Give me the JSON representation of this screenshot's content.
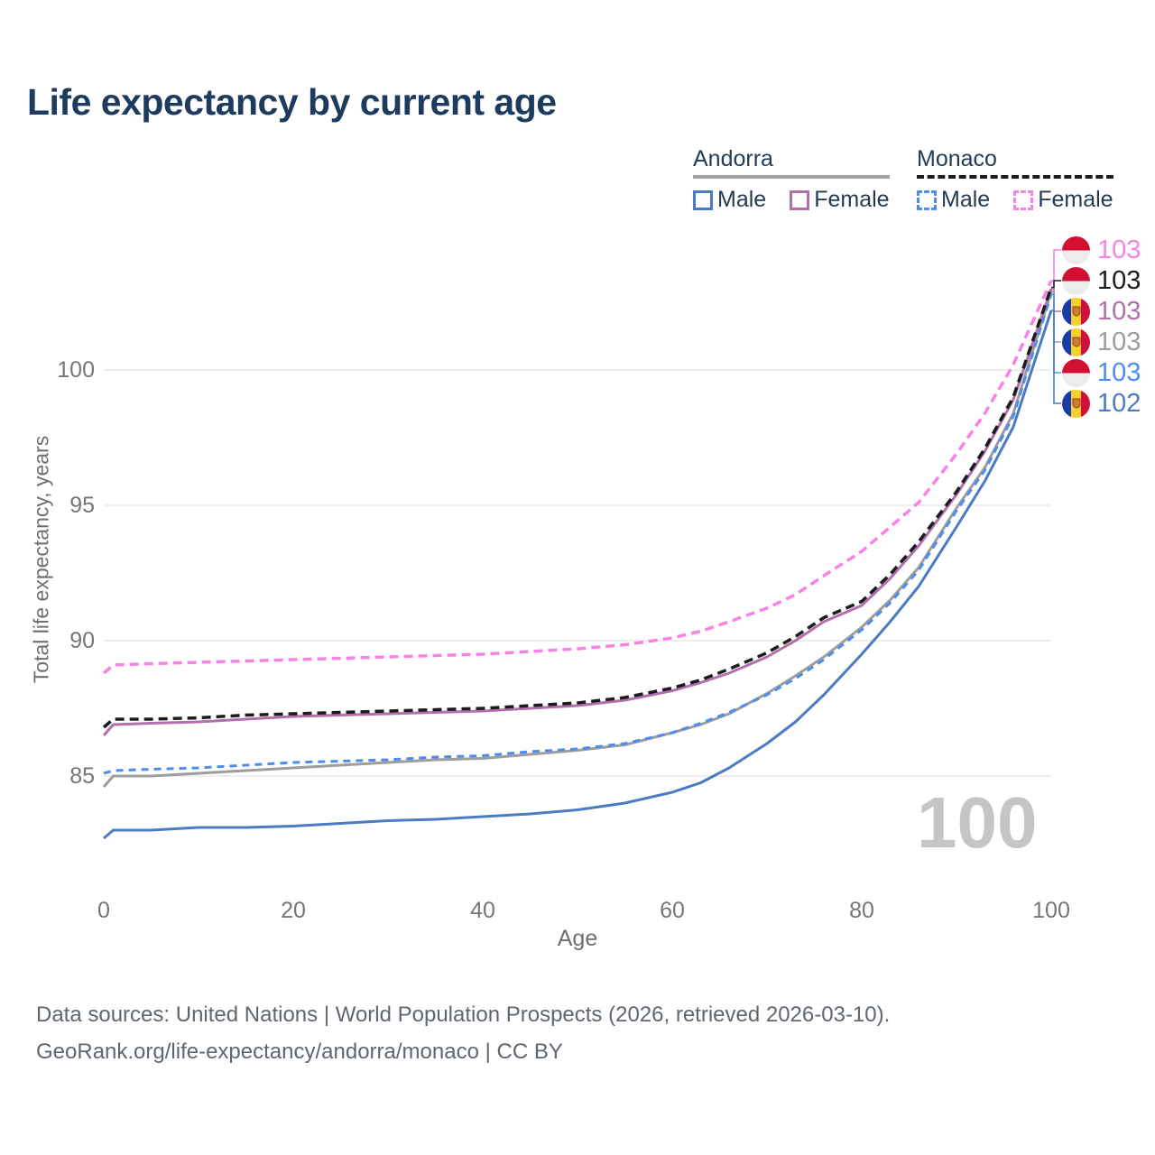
{
  "title": "Life expectancy by current age",
  "legend": {
    "groups": [
      {
        "country": "Andorra",
        "line_style": "solid",
        "underline_color": "#a3a3a3",
        "items": [
          {
            "label": "Male",
            "color": "#4a7bc4"
          },
          {
            "label": "Female",
            "color": "#b26fab"
          }
        ]
      },
      {
        "country": "Monaco",
        "line_style": "dashed",
        "underline_color": "#1c1c1c",
        "items": [
          {
            "label": "Male",
            "color": "#4f8cf0"
          },
          {
            "label": "Female",
            "color": "#fa82e6"
          }
        ]
      }
    ]
  },
  "axes": {
    "x_label": "Age",
    "y_label": "Total life expectancy, years"
  },
  "watermark": "100",
  "chart_data": {
    "type": "line",
    "title": "Life expectancy by current age",
    "xlabel": "Age",
    "ylabel": "Total life expectancy, years",
    "xlim": [
      0,
      100
    ],
    "ylim": [
      82,
      104.5
    ],
    "xticks": [
      0,
      20,
      40,
      60,
      80,
      100
    ],
    "yticks": [
      85,
      90,
      95,
      100
    ],
    "grid": true,
    "legend_position": "top-right",
    "x": [
      0,
      1,
      5,
      10,
      15,
      20,
      25,
      30,
      35,
      40,
      45,
      50,
      55,
      60,
      63,
      66,
      70,
      73,
      76,
      80,
      83,
      86,
      90,
      93,
      96,
      100
    ],
    "series": [
      {
        "id": "am",
        "name": "Andorra Male",
        "country": "Andorra",
        "sex": "male",
        "color": "#4a7bc4",
        "dash": null,
        "width": 3,
        "end_value_label": "102",
        "y": [
          82.7,
          83.0,
          83.0,
          83.1,
          83.1,
          83.15,
          83.25,
          83.35,
          83.4,
          83.5,
          83.6,
          83.75,
          84.0,
          84.4,
          84.75,
          85.3,
          86.2,
          87.0,
          88.0,
          89.5,
          90.7,
          92.0,
          94.2,
          95.9,
          97.9,
          102.2
        ]
      },
      {
        "id": "at",
        "name": "Andorra Total",
        "country": "Andorra",
        "sex": "both",
        "color": "#9d9d9d",
        "dash": null,
        "width": 3,
        "end_value_label": "103",
        "y": [
          84.6,
          85.0,
          85.0,
          85.1,
          85.2,
          85.3,
          85.4,
          85.5,
          85.6,
          85.65,
          85.8,
          85.95,
          86.15,
          86.6,
          86.9,
          87.3,
          88.05,
          88.7,
          89.4,
          90.5,
          91.5,
          92.7,
          94.9,
          96.4,
          98.4,
          102.9
        ]
      },
      {
        "id": "mm",
        "name": "Monaco Male",
        "country": "Monaco",
        "sex": "male",
        "color": "#4f8cf0",
        "dash": "8 6",
        "width": 3,
        "end_value_label": "103",
        "y": [
          85.1,
          85.2,
          85.25,
          85.3,
          85.4,
          85.5,
          85.55,
          85.6,
          85.7,
          85.75,
          85.9,
          86.0,
          86.2,
          86.6,
          86.95,
          87.35,
          88.0,
          88.6,
          89.3,
          90.4,
          91.4,
          92.6,
          94.8,
          96.3,
          98.3,
          102.8
        ]
      },
      {
        "id": "af",
        "name": "Andorra Female",
        "country": "Andorra",
        "sex": "female",
        "color": "#b26fab",
        "dash": null,
        "width": 3,
        "end_value_label": "103",
        "y": [
          86.5,
          86.9,
          86.95,
          87.0,
          87.1,
          87.2,
          87.25,
          87.3,
          87.35,
          87.4,
          87.5,
          87.6,
          87.8,
          88.15,
          88.45,
          88.8,
          89.4,
          90.0,
          90.7,
          91.3,
          92.3,
          93.5,
          95.4,
          97.0,
          98.9,
          103.0
        ]
      },
      {
        "id": "mt",
        "name": "Monaco Total",
        "country": "Monaco",
        "sex": "both",
        "color": "#1c1c1c",
        "dash": "10 6",
        "width": 3.5,
        "end_value_label": "103",
        "y": [
          86.8,
          87.1,
          87.1,
          87.15,
          87.25,
          87.3,
          87.35,
          87.4,
          87.45,
          87.5,
          87.6,
          87.7,
          87.9,
          88.25,
          88.55,
          88.95,
          89.55,
          90.15,
          90.85,
          91.45,
          92.45,
          93.65,
          95.5,
          97.1,
          99.0,
          103.05
        ]
      },
      {
        "id": "mf",
        "name": "Monaco Female",
        "country": "Monaco",
        "sex": "female",
        "color": "#fa82e6",
        "dash": "10 6",
        "width": 3.5,
        "end_value_label": "103",
        "y": [
          88.8,
          89.1,
          89.15,
          89.2,
          89.25,
          89.3,
          89.35,
          89.4,
          89.45,
          89.5,
          89.6,
          89.7,
          89.85,
          90.1,
          90.35,
          90.7,
          91.2,
          91.7,
          92.4,
          93.3,
          94.2,
          95.1,
          96.9,
          98.4,
          100.2,
          103.3
        ]
      }
    ]
  },
  "end_labels": [
    {
      "series": "mf",
      "flag": "monaco",
      "value": "103"
    },
    {
      "series": "mt",
      "flag": "monaco",
      "value": "103"
    },
    {
      "series": "af",
      "flag": "andorra",
      "value": "103"
    },
    {
      "series": "at",
      "flag": "andorra",
      "value": "103"
    },
    {
      "series": "mm",
      "flag": "monaco",
      "value": "103"
    },
    {
      "series": "am",
      "flag": "andorra",
      "value": "102"
    }
  ],
  "footer": {
    "line1": "Data sources: United Nations | World Population Prospects (2026, retrieved 2026-03-10).",
    "line2": "GeoRank.org/life-expectancy/andorra/monaco | CC BY"
  }
}
